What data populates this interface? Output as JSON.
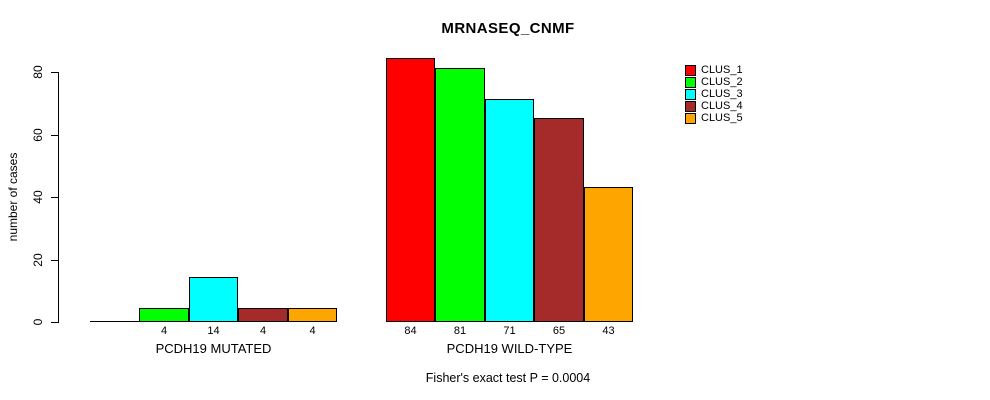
{
  "chart_data": {
    "type": "bar",
    "title": "MRNASEQ_CNMF",
    "ylabel": "number of cases",
    "xlabel": "",
    "ylim": [
      0,
      88
    ],
    "yticks": [
      0,
      20,
      40,
      60,
      80
    ],
    "grid": false,
    "legend_position": "right",
    "categories": [
      "PCDH19 MUTATED",
      "PCDH19 WILD-TYPE"
    ],
    "series": [
      {
        "name": "CLUS_1",
        "color": "#ff0000",
        "values": [
          0,
          84
        ]
      },
      {
        "name": "CLUS_2",
        "color": "#00ff00",
        "values": [
          4,
          81
        ]
      },
      {
        "name": "CLUS_3",
        "color": "#00ffff",
        "values": [
          14,
          71
        ]
      },
      {
        "name": "CLUS_4",
        "color": "#a52a2a",
        "values": [
          4,
          65
        ]
      },
      {
        "name": "CLUS_5",
        "color": "#ffa500",
        "values": [
          4,
          43
        ]
      }
    ],
    "bar_labels": [
      [
        "",
        "4",
        "14",
        "4",
        "4"
      ],
      [
        "84",
        "81",
        "71",
        "65",
        "43"
      ]
    ],
    "annotation": "Fisher's exact test P = 0.0004",
    "axis_color": "#000000",
    "bar_border_color": "#000000",
    "background_color": "#ffffff"
  }
}
